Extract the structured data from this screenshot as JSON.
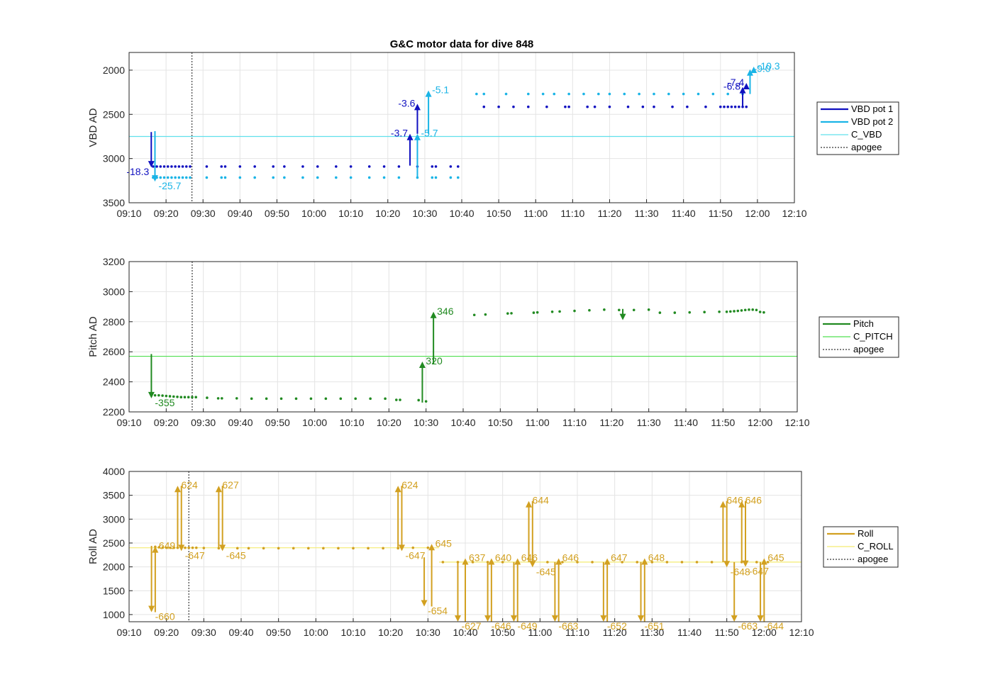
{
  "title": "G&C motor data for dive 848",
  "x_ticks": [
    "09:10",
    "09:20",
    "09:30",
    "09:40",
    "09:50",
    "10:00",
    "10:10",
    "10:20",
    "10:30",
    "10:40",
    "10:50",
    "11:00",
    "11:10",
    "11:20",
    "11:30",
    "11:40",
    "11:50",
    "12:00",
    "12:10"
  ],
  "colors": {
    "vbd1": "#1010c0",
    "vbd2": "#1ab4e6",
    "c_vbd": "#60e0ec",
    "pitch": "#218a21",
    "c_pitch": "#4fe04f",
    "roll": "#d2a020",
    "c_roll": "#f4ec70",
    "apogee": "#555555",
    "grid": "#e4e4e4",
    "axis": "#262626"
  },
  "chart_data": [
    {
      "type": "line",
      "name": "vbd",
      "ylabel": "VBD AD",
      "xlim": [
        550,
        730
      ],
      "ylim": [
        3500,
        1800
      ],
      "y_reversed": true,
      "yticks": [
        2000,
        2500,
        3000,
        3500
      ],
      "apogee": 567,
      "legend": [
        "VBD pot 1",
        "VBD pot 2",
        "C_VBD",
        "apogee"
      ],
      "legend_placement": "right",
      "ref_line": {
        "name": "C_VBD",
        "value": 2750
      },
      "series": [
        {
          "name": "VBD pot 1",
          "color_key": "vbd1",
          "x": [
            556.5,
            557.5,
            558.5,
            559.5,
            560.5,
            561.5,
            562.5,
            563.5,
            564.5,
            565.5,
            566.5,
            571,
            575,
            576,
            580,
            584,
            589,
            592,
            597,
            601,
            606,
            610,
            615,
            619,
            623,
            628,
            632,
            633,
            637,
            639,
            646,
            650,
            654,
            658,
            663,
            668,
            669,
            674,
            676,
            680,
            685,
            689,
            692,
            697,
            701,
            706,
            710,
            711,
            712,
            713,
            714,
            715,
            716,
            717
          ],
          "y": [
            3090,
            3090,
            3090,
            3090,
            3090,
            3090,
            3090,
            3090,
            3090,
            3090,
            3090,
            3090,
            3090,
            3090,
            3090,
            3090,
            3090,
            3090,
            3090,
            3090,
            3090,
            3090,
            3090,
            3090,
            3090,
            3090,
            3090,
            3090,
            3090,
            3090,
            2415,
            2415,
            2415,
            2415,
            2415,
            2415,
            2415,
            2415,
            2415,
            2415,
            2415,
            2415,
            2415,
            2415,
            2415,
            2415,
            2415,
            2415,
            2415,
            2415,
            2415,
            2415,
            2415,
            2415
          ]
        },
        {
          "name": "VBD pot 2",
          "color_key": "vbd2",
          "x": [
            556.5,
            557.5,
            558.5,
            559.5,
            560.5,
            561.5,
            562.5,
            563.5,
            564.5,
            565.5,
            566.5,
            571,
            575,
            576,
            580,
            584,
            589,
            592,
            597,
            601,
            606,
            610,
            615,
            619,
            623,
            628,
            632,
            633,
            637,
            639,
            644,
            646,
            652,
            658,
            662,
            665,
            669,
            673,
            677,
            680,
            684,
            688,
            692,
            696,
            700,
            704,
            708,
            712,
            716
          ],
          "y": [
            3215,
            3215,
            3215,
            3215,
            3215,
            3215,
            3215,
            3215,
            3215,
            3215,
            3215,
            3215,
            3215,
            3215,
            3215,
            3215,
            3215,
            3215,
            3215,
            3215,
            3215,
            3215,
            3215,
            3215,
            3215,
            3215,
            3215,
            3215,
            3215,
            3215,
            2270,
            2270,
            2270,
            2270,
            2270,
            2270,
            2270,
            2270,
            2270,
            2270,
            2270,
            2270,
            2270,
            2270,
            2270,
            2270,
            2270,
            2270,
            2270
          ]
        }
      ],
      "arrows": [
        {
          "x": 556,
          "from": 2700,
          "to": 3100,
          "label": "-18.3",
          "color_key": "vbd1",
          "anchor": "end"
        },
        {
          "x": 557,
          "from": 2690,
          "to": 3260,
          "label": "-25.7",
          "color_key": "vbd2",
          "anchor": "start"
        },
        {
          "x": 626,
          "from": 3080,
          "to": 2720,
          "label": "-3.7",
          "color_key": "vbd1",
          "anchor": "end"
        },
        {
          "x": 628,
          "from": 3220,
          "to": 2720,
          "label": "-5.7",
          "color_key": "vbd2",
          "anchor": "start"
        },
        {
          "x": 628,
          "from": 2720,
          "to": 2380,
          "label": "-3.6",
          "color_key": "vbd1",
          "anchor": "end"
        },
        {
          "x": 631,
          "from": 2720,
          "to": 2230,
          "label": "-5.1",
          "color_key": "vbd2",
          "anchor": "start"
        },
        {
          "x": 716,
          "from": 2415,
          "to": 2190,
          "label": "-6.8",
          "color_key": "vbd1",
          "anchor": "end"
        },
        {
          "x": 717,
          "from": 2190,
          "to": 2145,
          "label": "-7.4",
          "color_key": "vbd1",
          "anchor": "end"
        },
        {
          "x": 718,
          "from": 2270,
          "to": 1990,
          "label": "-9.0",
          "color_key": "vbd2",
          "anchor": "start"
        },
        {
          "x": 719,
          "from": 1990,
          "to": 1960,
          "label": "-10.3",
          "color_key": "vbd2",
          "anchor": "start"
        }
      ]
    },
    {
      "type": "line",
      "name": "pitch",
      "ylabel": "Pitch AD",
      "xlim": [
        550,
        730
      ],
      "ylim": [
        2200,
        3200
      ],
      "yticks": [
        2200,
        2400,
        2600,
        2800,
        3000,
        3200
      ],
      "apogee": 567,
      "legend": [
        "Pitch",
        "C_PITCH",
        "apogee"
      ],
      "legend_placement": "right",
      "ref_line": {
        "name": "C_PITCH",
        "value": 2570
      },
      "series": [
        {
          "name": "Pitch",
          "color_key": "pitch",
          "x": [
            557,
            558,
            559,
            560,
            561,
            562,
            563,
            564,
            565,
            566,
            567,
            568,
            571,
            574,
            575,
            579,
            583,
            587,
            591,
            595,
            599,
            603,
            607,
            611,
            615,
            619,
            622,
            623,
            628,
            630,
            643,
            646,
            652,
            653,
            659,
            660,
            664,
            666,
            670,
            674,
            678,
            682,
            686,
            690,
            693,
            697,
            701,
            705,
            709,
            711,
            712,
            713,
            714,
            715,
            716,
            717,
            718,
            719,
            720,
            721
          ],
          "y": [
            2310,
            2310,
            2308,
            2306,
            2304,
            2302,
            2300,
            2298,
            2298,
            2298,
            2298,
            2298,
            2294,
            2290,
            2290,
            2290,
            2288,
            2288,
            2288,
            2288,
            2288,
            2288,
            2288,
            2288,
            2288,
            2288,
            2280,
            2280,
            2278,
            2270,
            2845,
            2848,
            2855,
            2856,
            2860,
            2862,
            2866,
            2868,
            2872,
            2876,
            2880,
            2878,
            2878,
            2880,
            2860,
            2860,
            2862,
            2864,
            2866,
            2866,
            2868,
            2870,
            2872,
            2875,
            2878,
            2880,
            2880,
            2878,
            2865,
            2862
          ]
        }
      ],
      "arrows": [
        {
          "x": 556,
          "from": 2585,
          "to": 2290,
          "label": "-355",
          "color_key": "pitch",
          "anchor": "start"
        },
        {
          "x": 629,
          "from": 2262,
          "to": 2535,
          "label": "320",
          "color_key": "pitch",
          "anchor": "start"
        },
        {
          "x": 632,
          "from": 2520,
          "to": 2866,
          "label": "346",
          "color_key": "pitch",
          "anchor": "start"
        },
        {
          "x": 683,
          "from": 2885,
          "to": 2810,
          "label": "",
          "color_key": "pitch",
          "anchor": "start"
        }
      ]
    },
    {
      "type": "line",
      "name": "roll",
      "ylabel": "Roll AD",
      "xlim": [
        550,
        730
      ],
      "ylim": [
        850,
        4000
      ],
      "yticks": [
        1000,
        1500,
        2000,
        2500,
        3000,
        3500,
        4000
      ],
      "apogee": 566,
      "legend": [
        "Roll",
        "C_ROLL",
        "apogee"
      ],
      "legend_placement": "right",
      "ref_line_left": {
        "name": "C_ROLL",
        "value": 2400,
        "x0": 550,
        "x1": 633
      },
      "ref_line_right": {
        "name": "C_ROLL",
        "value": 2100,
        "x0": 633,
        "x1": 730
      },
      "series": [
        {
          "name": "Roll",
          "color_key": "roll",
          "x": [
            557,
            558,
            559,
            560,
            561,
            562,
            563,
            564,
            565,
            566,
            567,
            568,
            570,
            574,
            575,
            579,
            582,
            586,
            590,
            594,
            598,
            602,
            606,
            610,
            614,
            618,
            622,
            626,
            630,
            634,
            638,
            642,
            646,
            650,
            654,
            658,
            662,
            666,
            670,
            674,
            678,
            682,
            686,
            690,
            694,
            698,
            702,
            706,
            710,
            714,
            718,
            721
          ],
          "y": [
            2420,
            2410,
            2405,
            2400,
            2400,
            2400,
            2400,
            2400,
            2400,
            2400,
            2400,
            2400,
            2395,
            2390,
            2390,
            2390,
            2390,
            2390,
            2390,
            2390,
            2390,
            2390,
            2390,
            2390,
            2390,
            2390,
            2390,
            2400,
            2400,
            2100,
            2100,
            2100,
            2100,
            2100,
            2100,
            2100,
            2100,
            2100,
            2100,
            2100,
            2100,
            2100,
            2100,
            2100,
            2100,
            2100,
            2100,
            2100,
            2100,
            2100,
            2100,
            2100
          ]
        }
      ],
      "arrows": [
        {
          "x": 556,
          "from": 2440,
          "to": 1050,
          "label": "-660",
          "color_key": "roll",
          "anchor": "start",
          "label_pos": "end"
        },
        {
          "x": 557,
          "from": 1050,
          "to": 2430,
          "label": "649",
          "color_key": "roll",
          "anchor": "start",
          "label_pos": "end"
        },
        {
          "x": 563,
          "from": 2390,
          "to": 3700,
          "label": "624",
          "color_key": "roll",
          "anchor": "start",
          "label_pos": "end"
        },
        {
          "x": 564,
          "from": 3700,
          "to": 2330,
          "label": "-647",
          "color_key": "roll",
          "anchor": "start",
          "label_pos": "end"
        },
        {
          "x": 574,
          "from": 2390,
          "to": 3700,
          "label": "627",
          "color_key": "roll",
          "anchor": "start",
          "label_pos": "end"
        },
        {
          "x": 575,
          "from": 3700,
          "to": 2330,
          "label": "-645",
          "color_key": "roll",
          "anchor": "start",
          "label_pos": "end"
        },
        {
          "x": 622,
          "from": 2390,
          "to": 3700,
          "label": "624",
          "color_key": "roll",
          "anchor": "start",
          "label_pos": "end"
        },
        {
          "x": 623,
          "from": 3700,
          "to": 2330,
          "label": "-647",
          "color_key": "roll",
          "anchor": "start",
          "label_pos": "end"
        },
        {
          "x": 629,
          "from": 2200,
          "to": 1170,
          "label": "-654",
          "color_key": "roll",
          "anchor": "start",
          "label_pos": "end"
        },
        {
          "x": 631,
          "from": 1170,
          "to": 2480,
          "label": "645",
          "color_key": "roll",
          "anchor": "start",
          "label_pos": "end"
        },
        {
          "x": 638,
          "from": 2100,
          "to": 850,
          "label": "-627",
          "color_key": "roll",
          "anchor": "start",
          "label_pos": "end"
        },
        {
          "x": 640,
          "from": 850,
          "to": 2180,
          "label": "637",
          "color_key": "roll",
          "anchor": "start",
          "label_pos": "end"
        },
        {
          "x": 646,
          "from": 2100,
          "to": 850,
          "label": "-646",
          "color_key": "roll",
          "anchor": "start",
          "label_pos": "end"
        },
        {
          "x": 647,
          "from": 850,
          "to": 2180,
          "label": "640",
          "color_key": "roll",
          "anchor": "start",
          "label_pos": "end"
        },
        {
          "x": 653,
          "from": 2100,
          "to": 850,
          "label": "-649",
          "color_key": "roll",
          "anchor": "start",
          "label_pos": "end"
        },
        {
          "x": 654,
          "from": 850,
          "to": 2180,
          "label": "646",
          "color_key": "roll",
          "anchor": "start",
          "label_pos": "end"
        },
        {
          "x": 657,
          "from": 2100,
          "to": 3380,
          "label": "644",
          "color_key": "roll",
          "anchor": "start",
          "label_pos": "end"
        },
        {
          "x": 658,
          "from": 3380,
          "to": 1990,
          "label": "-645",
          "color_key": "roll",
          "anchor": "start",
          "label_pos": "end"
        },
        {
          "x": 664,
          "from": 2100,
          "to": 850,
          "label": "-663",
          "color_key": "roll",
          "anchor": "start",
          "label_pos": "end"
        },
        {
          "x": 665,
          "from": 850,
          "to": 2180,
          "label": "646",
          "color_key": "roll",
          "anchor": "start",
          "label_pos": "end"
        },
        {
          "x": 677,
          "from": 2100,
          "to": 850,
          "label": "-652",
          "color_key": "roll",
          "anchor": "start",
          "label_pos": "end"
        },
        {
          "x": 678,
          "from": 850,
          "to": 2180,
          "label": "647",
          "color_key": "roll",
          "anchor": "start",
          "label_pos": "end"
        },
        {
          "x": 687,
          "from": 2100,
          "to": 850,
          "label": "-651",
          "color_key": "roll",
          "anchor": "start",
          "label_pos": "end"
        },
        {
          "x": 688,
          "from": 850,
          "to": 2180,
          "label": "648",
          "color_key": "roll",
          "anchor": "start",
          "label_pos": "end"
        },
        {
          "x": 709,
          "from": 2100,
          "to": 3380,
          "label": "646",
          "color_key": "roll",
          "anchor": "start",
          "label_pos": "end"
        },
        {
          "x": 710,
          "from": 3380,
          "to": 1990,
          "label": "-648",
          "color_key": "roll",
          "anchor": "start",
          "label_pos": "end"
        },
        {
          "x": 712,
          "from": 2100,
          "to": 850,
          "label": "-663",
          "color_key": "roll",
          "anchor": "start",
          "label_pos": "end"
        },
        {
          "x": 714,
          "from": 2100,
          "to": 3380,
          "label": "646",
          "color_key": "roll",
          "anchor": "start",
          "label_pos": "end"
        },
        {
          "x": 715,
          "from": 3380,
          "to": 2000,
          "label": "-647",
          "color_key": "roll",
          "anchor": "start",
          "label_pos": "end"
        },
        {
          "x": 719,
          "from": 2100,
          "to": 850,
          "label": "-644",
          "color_key": "roll",
          "anchor": "start",
          "label_pos": "end"
        },
        {
          "x": 720,
          "from": 850,
          "to": 2180,
          "label": "645",
          "color_key": "roll",
          "anchor": "start",
          "label_pos": "end"
        }
      ]
    }
  ]
}
